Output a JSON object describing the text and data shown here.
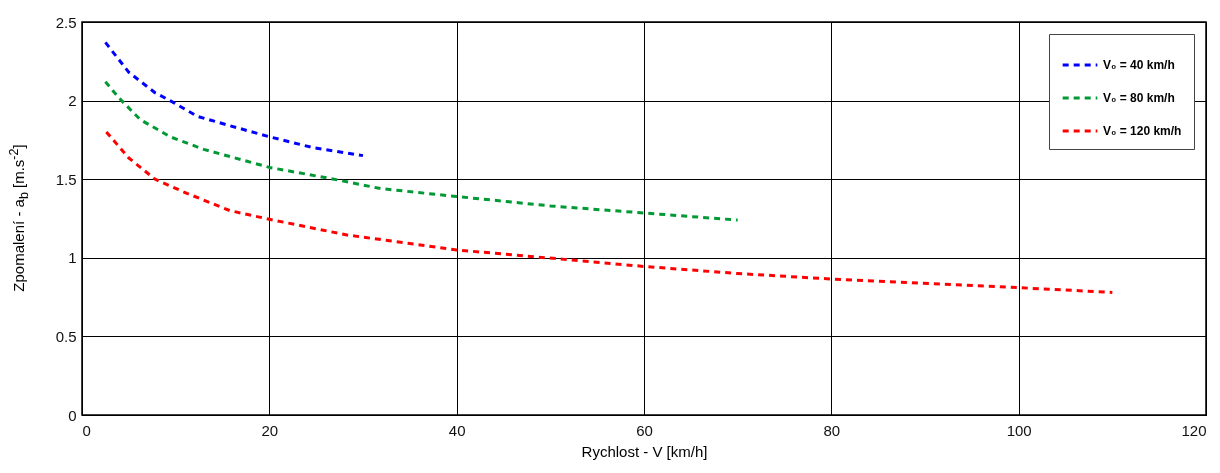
{
  "chart_data": {
    "type": "line",
    "xlabel": "Rychlost - V [km/h]",
    "ylabel": "Zpomalení - a$_{b}$ [m.s$^{-2}$]",
    "xlim": [
      0,
      120
    ],
    "xticks": [
      0,
      20,
      40,
      60,
      80,
      100,
      120
    ],
    "ylim": [
      0,
      2.5
    ],
    "yticks": [
      0,
      0.5,
      1,
      1.5,
      2,
      2.5
    ],
    "grid": true,
    "legend": "top right",
    "line_style": "dashed",
    "marker": "none",
    "series": [
      {
        "name": "V₀ = 40 km/h",
        "color": "#0000ff",
        "x": [
          2.5,
          5,
          7.8,
          9.4,
          12.3,
          15.8,
          20,
          24.7,
          30
        ],
        "values": [
          2.37,
          2.18,
          2.05,
          2.0,
          1.9,
          1.84,
          1.77,
          1.7,
          1.65
        ]
      },
      {
        "name": "V₀ = 80 km/h",
        "color": "#009933",
        "x": [
          2.5,
          3.9,
          6.2,
          9.4,
          13,
          20,
          26.9,
          31.9,
          40,
          50,
          60,
          70
        ],
        "values": [
          2.12,
          2.02,
          1.88,
          1.77,
          1.69,
          1.575,
          1.5,
          1.44,
          1.39,
          1.33,
          1.285,
          1.24
        ]
      },
      {
        "name": "V₀ = 120 km/h",
        "color": "#ff0000",
        "x": [
          2.6,
          5,
          7.8,
          11.2,
          15.8,
          20,
          28.3,
          40,
          51.5,
          60,
          70,
          80,
          100,
          110
        ],
        "values": [
          1.8,
          1.635,
          1.5,
          1.41,
          1.3,
          1.245,
          1.145,
          1.05,
          0.99,
          0.945,
          0.9,
          0.865,
          0.81,
          0.78
        ]
      }
    ]
  }
}
